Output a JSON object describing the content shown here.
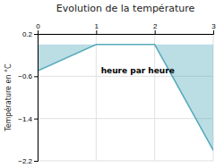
{
  "chart_data": {
    "type": "area",
    "title": "Evolution de la température",
    "y_label": "Température en °C",
    "annotation": "heure par heure",
    "x": [
      0,
      1,
      2,
      3
    ],
    "values": [
      -0.5,
      0.0,
      0.0,
      -2.0
    ],
    "baseline": 0.0,
    "color": "#55aabb",
    "xlim": [
      0,
      3
    ],
    "ylim": [
      -2.2,
      0.2
    ],
    "xticks": [
      0,
      1,
      2,
      3
    ],
    "yticks": [
      {
        "value": 0.2,
        "label": "0.2"
      },
      {
        "value": -0.6,
        "label": "−0.6"
      },
      {
        "value": -1.4,
        "label": "−1.4"
      },
      {
        "value": -2.2,
        "label": "−2.2"
      }
    ],
    "grid": true
  }
}
